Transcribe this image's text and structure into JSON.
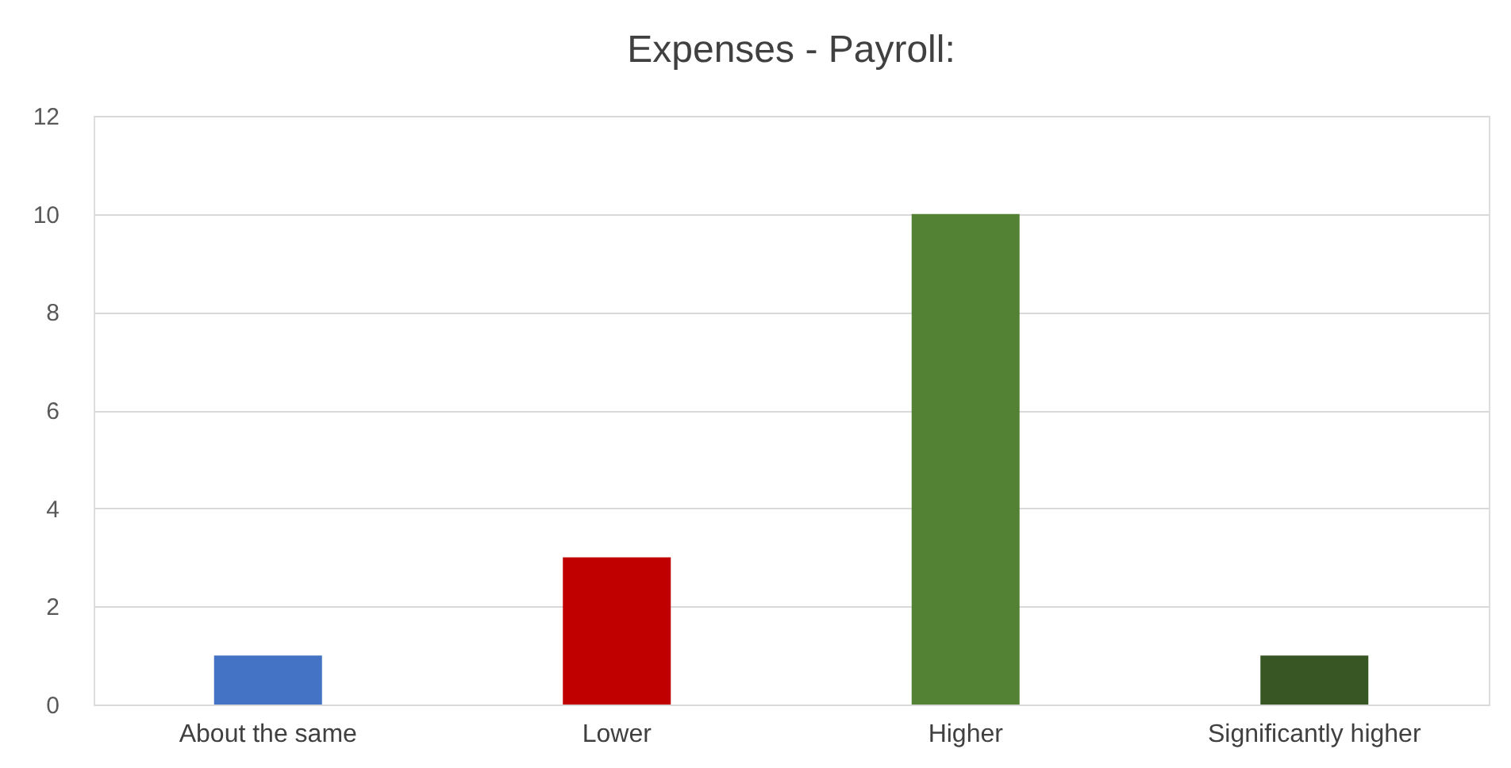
{
  "chart_data": {
    "type": "bar",
    "title": "Expenses - Payroll:",
    "categories": [
      "About the same",
      "Lower",
      "Higher",
      "Significantly higher"
    ],
    "values": [
      1,
      3,
      10,
      1
    ],
    "colors": [
      "#4472c4",
      "#c00000",
      "#548235",
      "#375623"
    ],
    "ylim": [
      0,
      12
    ],
    "yticks": [
      0,
      2,
      4,
      6,
      8,
      10,
      12
    ],
    "grid": "y"
  }
}
